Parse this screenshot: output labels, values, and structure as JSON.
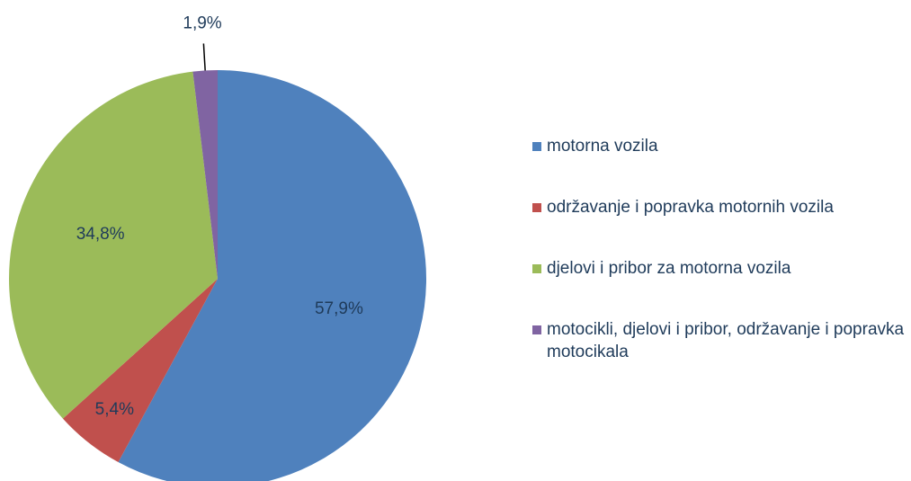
{
  "chart_data": {
    "type": "pie",
    "categories": [
      "motorna vozila",
      "održavanje i popravka motornih vozila",
      "djelovi i pribor za motorna vozila",
      "motocikli, djelovi i pribor, održavanje i popravka motocikala"
    ],
    "values": [
      57.9,
      5.4,
      34.8,
      1.9
    ],
    "value_labels": [
      "57,9%",
      "5,4%",
      "34,8%",
      "1,9%"
    ],
    "colors": [
      "#4f81bd",
      "#c0504d",
      "#9bbb59",
      "#8064a2"
    ],
    "legend": "right"
  }
}
